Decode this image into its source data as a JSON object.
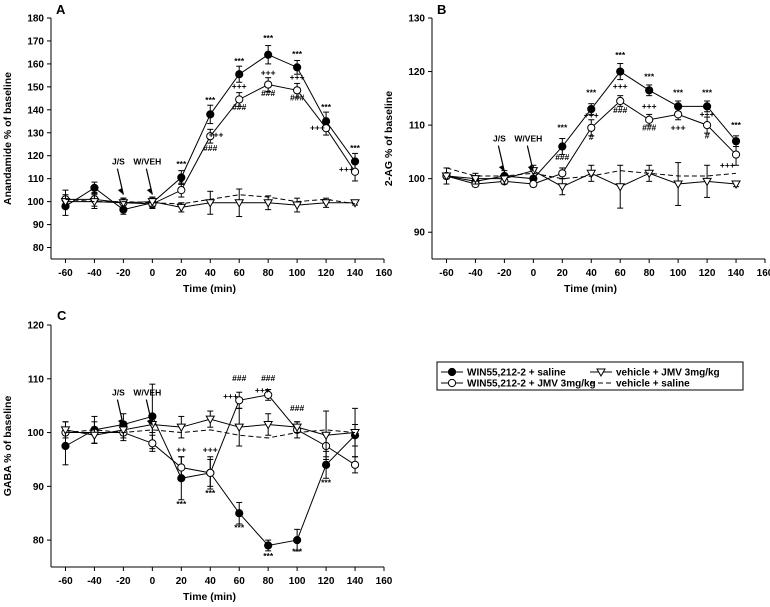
{
  "chart_data": [
    {
      "panel": "A",
      "type": "line",
      "xlabel": "Time (min)",
      "ylabel": "Anandamide % of baseline",
      "xlim": [
        -70,
        160
      ],
      "ylim": [
        75,
        180
      ],
      "xticks": [
        -60,
        -40,
        -20,
        0,
        20,
        40,
        60,
        80,
        100,
        120,
        140,
        160
      ],
      "yticks": [
        80,
        90,
        100,
        110,
        120,
        130,
        140,
        150,
        160,
        170,
        180
      ],
      "x": [
        -60,
        -40,
        -20,
        0,
        20,
        40,
        60,
        80,
        100,
        120,
        140
      ],
      "series": [
        {
          "name": "WIN55,212-2 + saline",
          "values": [
            98,
            106,
            96.5,
            99.5,
            110.5,
            138,
            155.5,
            164,
            158.5,
            135,
            117.5
          ],
          "errors": [
            4,
            2.5,
            2,
            2,
            3,
            4,
            3.5,
            4,
            3,
            4,
            3.5
          ]
        },
        {
          "name": "WIN55,212-2 + JMV 3mg/kg",
          "values": [
            101,
            101,
            99.5,
            99,
            105,
            128.5,
            144.5,
            151,
            148.5,
            132,
            113
          ],
          "errors": [
            4,
            3,
            2,
            2,
            3,
            3,
            3,
            3,
            3,
            3,
            4
          ]
        },
        {
          "name": "vehicle + JMV 3mg/kg",
          "values": [
            100,
            100,
            99.5,
            100,
            97.5,
            99.5,
            99.5,
            99.5,
            98.5,
            99.5,
            99.5
          ],
          "errors": [
            3,
            3,
            2,
            2,
            2,
            5,
            6,
            3,
            3,
            2,
            1
          ]
        },
        {
          "name": "vehicle + saline",
          "values": [
            101,
            100,
            100,
            99.5,
            99,
            101,
            103,
            102,
            100,
            101,
            99
          ],
          "errors": [
            0,
            0,
            0,
            0,
            0,
            0,
            0,
            0,
            0,
            0,
            0
          ]
        }
      ],
      "arrows": [
        {
          "label": "J/S",
          "x": -20
        },
        {
          "label": "W/VEH",
          "x": 0
        }
      ],
      "annotations": [
        {
          "text": "***",
          "x": 20,
          "y": 115
        },
        {
          "text": "#",
          "x": 20,
          "y": 108
        },
        {
          "text": "***",
          "x": 40,
          "y": 143
        },
        {
          "text": "+++",
          "x": 44,
          "y": 128
        },
        {
          "text": "###",
          "x": 40,
          "y": 122
        },
        {
          "text": "***",
          "x": 60,
          "y": 160
        },
        {
          "text": "+++",
          "x": 60,
          "y": 149
        },
        {
          "text": "###",
          "x": 60,
          "y": 140
        },
        {
          "text": "***",
          "x": 80,
          "y": 170
        },
        {
          "text": "+++",
          "x": 80,
          "y": 155
        },
        {
          "text": "###",
          "x": 80,
          "y": 146
        },
        {
          "text": "***",
          "x": 100,
          "y": 163
        },
        {
          "text": "+++",
          "x": 100,
          "y": 153
        },
        {
          "text": "###",
          "x": 100,
          "y": 144
        },
        {
          "text": "***",
          "x": 120,
          "y": 140
        },
        {
          "text": "+++",
          "x": 114,
          "y": 131
        },
        {
          "text": "***",
          "x": 140,
          "y": 122
        },
        {
          "text": "+++",
          "x": 134,
          "y": 113
        }
      ]
    },
    {
      "panel": "B",
      "type": "line",
      "xlabel": "Time (min)",
      "ylabel": "2-AG % of baseline",
      "xlim": [
        -70,
        160
      ],
      "ylim": [
        85,
        130
      ],
      "xticks": [
        -60,
        -40,
        -20,
        0,
        20,
        40,
        60,
        80,
        100,
        120,
        140,
        160
      ],
      "yticks": [
        90,
        100,
        110,
        120,
        130
      ],
      "x": [
        -60,
        -40,
        -20,
        0,
        20,
        40,
        60,
        80,
        100,
        120,
        140
      ],
      "series": [
        {
          "name": "WIN55,212-2 + saline",
          "values": [
            100.5,
            99.5,
            100.5,
            100,
            106,
            113,
            120,
            116.5,
            113.5,
            113.5,
            107
          ],
          "errors": [
            0.5,
            0.5,
            1,
            1.5,
            1.5,
            1,
            1.5,
            1,
            1,
            1,
            1
          ]
        },
        {
          "name": "WIN55,212-2 + JMV 3mg/kg",
          "values": [
            100.5,
            99,
            99.5,
            99,
            101,
            109.5,
            114.5,
            111,
            112,
            110,
            104.5
          ],
          "errors": [
            0.5,
            0.5,
            0.5,
            0.5,
            1,
            1.5,
            1,
            1,
            1,
            1.5,
            2
          ]
        },
        {
          "name": "vehicle + JMV 3mg/kg",
          "values": [
            100.5,
            100,
            100,
            101.5,
            98.5,
            101,
            98.5,
            101,
            99,
            99.5,
            99
          ],
          "errors": [
            1.5,
            1,
            1,
            1,
            1.5,
            1.5,
            4,
            1.5,
            4,
            3,
            0.5
          ]
        },
        {
          "name": "vehicle + saline",
          "values": [
            102,
            100.5,
            100.5,
            101,
            100,
            100.5,
            101.5,
            101,
            100.5,
            100.5,
            101
          ],
          "errors": [
            0,
            0,
            0,
            0,
            0,
            0,
            0,
            0,
            0,
            0,
            0
          ]
        }
      ],
      "arrows": [
        {
          "label": "J/S",
          "x": -20
        },
        {
          "label": "W/VEH",
          "x": 0
        }
      ],
      "annotations": [
        {
          "text": "***",
          "x": 20,
          "y": 109
        },
        {
          "text": "###",
          "x": 20,
          "y": 103.5
        },
        {
          "text": "***",
          "x": 40,
          "y": 115.5
        },
        {
          "text": "+++",
          "x": 40,
          "y": 111.3
        },
        {
          "text": "#",
          "x": 40,
          "y": 107.2
        },
        {
          "text": "***",
          "x": 60,
          "y": 122.5
        },
        {
          "text": "+++",
          "x": 60,
          "y": 116.7
        },
        {
          "text": "###",
          "x": 60,
          "y": 112.3
        },
        {
          "text": "***",
          "x": 80,
          "y": 118.5
        },
        {
          "text": "+++",
          "x": 80,
          "y": 113
        },
        {
          "text": "###",
          "x": 80,
          "y": 109
        },
        {
          "text": "***",
          "x": 100,
          "y": 115.5
        },
        {
          "text": "+++",
          "x": 100,
          "y": 109
        },
        {
          "text": "***",
          "x": 120,
          "y": 115.5
        },
        {
          "text": "+++",
          "x": 120,
          "y": 111.5
        },
        {
          "text": "#",
          "x": 120,
          "y": 107.5
        },
        {
          "text": "***",
          "x": 140,
          "y": 109.5
        },
        {
          "text": "+++",
          "x": 134,
          "y": 102
        }
      ]
    },
    {
      "panel": "C",
      "type": "line",
      "xlabel": "Time (min)",
      "ylabel": "GABA % of baseline",
      "xlim": [
        -70,
        160
      ],
      "ylim": [
        75,
        120
      ],
      "xticks": [
        -60,
        -40,
        -20,
        0,
        20,
        40,
        60,
        80,
        100,
        120,
        140,
        160
      ],
      "yticks": [
        80,
        90,
        100,
        110,
        120
      ],
      "x": [
        -60,
        -40,
        -20,
        0,
        20,
        40,
        60,
        80,
        100,
        120,
        140
      ],
      "series": [
        {
          "name": "WIN55,212-2 + saline",
          "values": [
            97.5,
            100.5,
            101.5,
            103,
            91.5,
            92.5,
            85,
            79,
            80,
            94,
            99.5
          ],
          "errors": [
            3.5,
            2.5,
            2,
            6,
            4,
            3,
            2,
            1,
            2,
            2.5,
            2
          ]
        },
        {
          "name": "WIN55,212-2 + JMV 3mg/kg",
          "values": [
            100,
            100,
            100,
            98,
            93.5,
            92.5,
            106,
            107,
            100.5,
            97.5,
            94
          ],
          "errors": [
            2,
            2,
            1.5,
            1.5,
            2,
            2.5,
            1.5,
            1,
            1.5,
            2,
            1.5
          ]
        },
        {
          "name": "vehicle + JMV 3mg/kg",
          "values": [
            100.5,
            99.5,
            100.5,
            101.5,
            101,
            102.5,
            101,
            101.5,
            101,
            99.5,
            100
          ],
          "errors": [
            1.5,
            1.5,
            1.5,
            1.5,
            2,
            1.5,
            3.5,
            2,
            1,
            4.5,
            4.5
          ]
        },
        {
          "name": "vehicle + saline",
          "values": [
            100,
            100.5,
            100,
            100.5,
            100,
            100.5,
            99.5,
            99,
            100,
            100.5,
            100
          ],
          "errors": [
            0,
            0,
            0,
            0,
            0,
            0,
            0,
            0,
            0,
            0,
            0
          ]
        }
      ],
      "arrows": [
        {
          "label": "J/S",
          "x": -20
        },
        {
          "label": "W/VEH",
          "x": 0
        }
      ],
      "annotations": [
        {
          "text": "++",
          "x": 20,
          "y": 96.3
        },
        {
          "text": "***",
          "x": 20,
          "y": 86.2
        },
        {
          "text": "+++",
          "x": 40,
          "y": 96.3
        },
        {
          "text": "***",
          "x": 40,
          "y": 88.2
        },
        {
          "text": "***",
          "x": 60,
          "y": 81.8
        },
        {
          "text": "+++",
          "x": 54,
          "y": 106.2
        },
        {
          "text": "###",
          "x": 60,
          "y": 109.6
        },
        {
          "text": "+++",
          "x": 76,
          "y": 107.4
        },
        {
          "text": "###",
          "x": 80,
          "y": 109.6
        },
        {
          "text": "***",
          "x": 80,
          "y": 76.5
        },
        {
          "text": "###",
          "x": 100,
          "y": 104
        },
        {
          "text": "***",
          "x": 100,
          "y": 77.3
        },
        {
          "text": "***",
          "x": 120,
          "y": 90.2
        }
      ]
    }
  ],
  "panel_labels": [
    "A",
    "B",
    "C"
  ],
  "legend": {
    "items": [
      "WIN55,212-2 + saline",
      "WIN55,212-2 + JMV 3mg/kg",
      "vehicle + JMV 3mg/kg",
      "vehicle + saline"
    ]
  },
  "colors": {
    "ink": "#000000",
    "open_fill": "#ffffff"
  }
}
